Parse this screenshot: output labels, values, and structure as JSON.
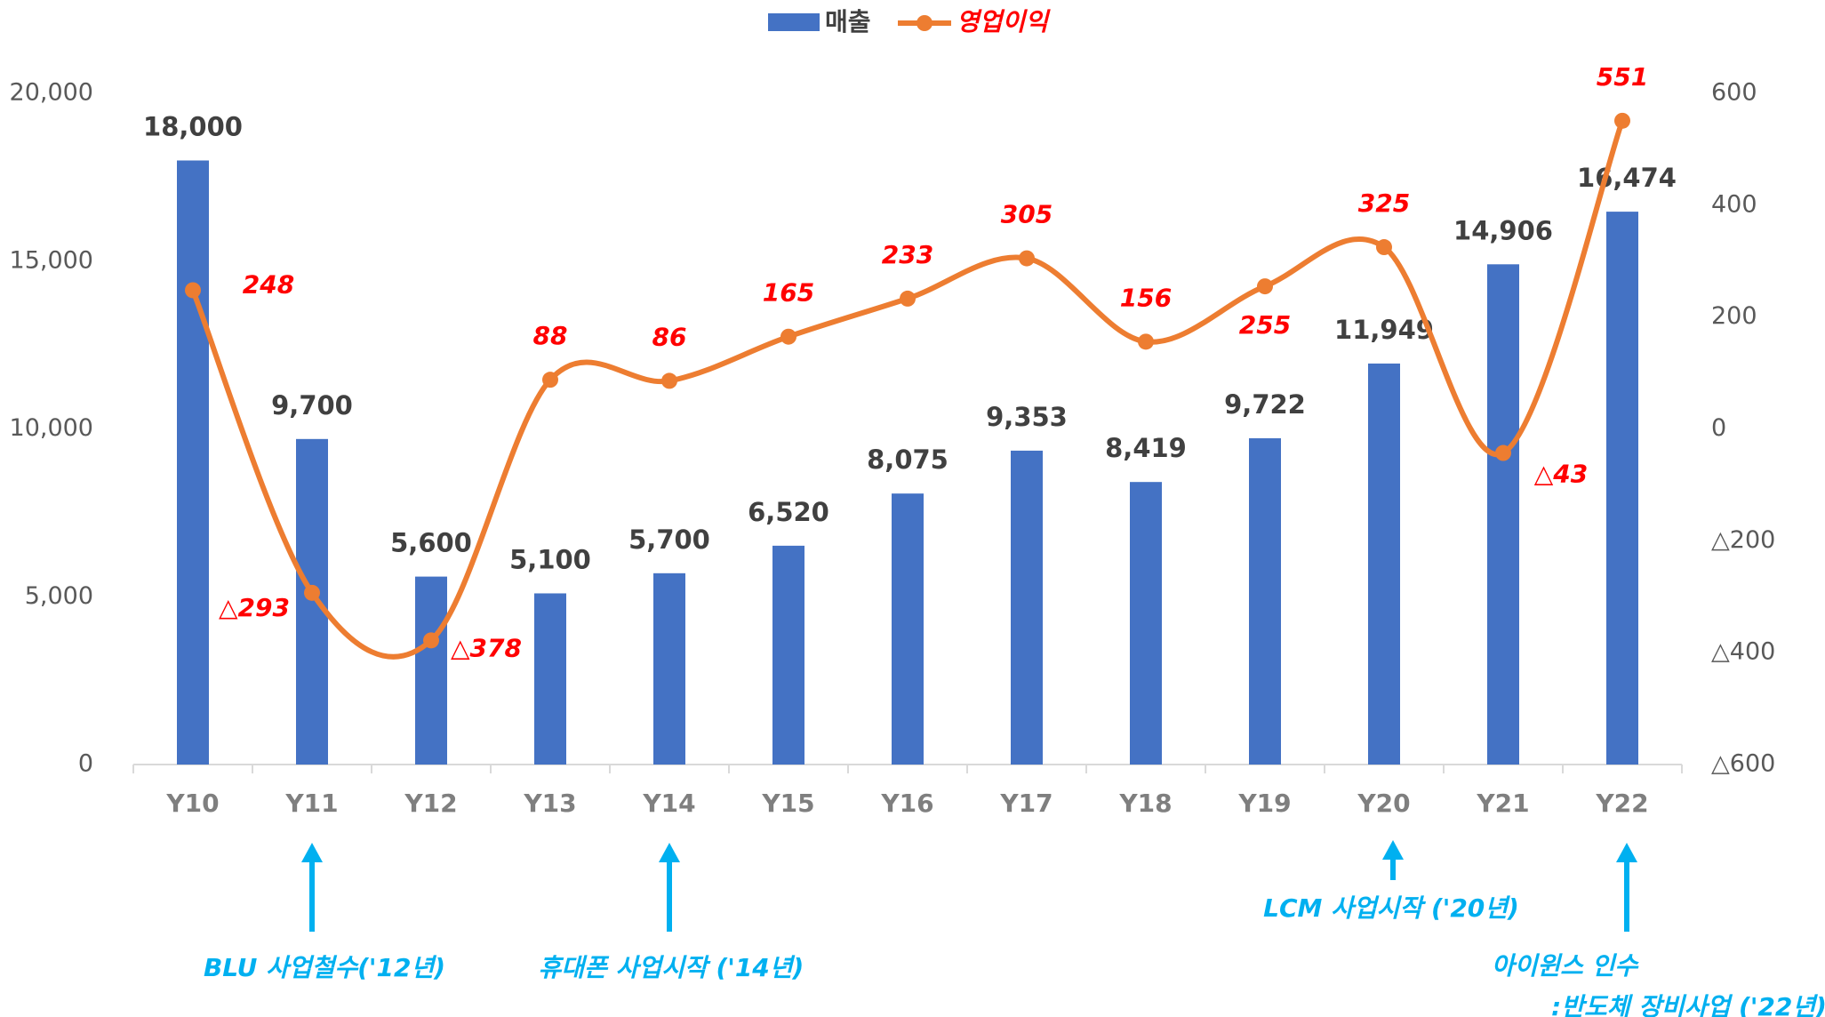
{
  "chart_data": {
    "type": "bar_line",
    "categories": [
      "Y10",
      "Y11",
      "Y12",
      "Y13",
      "Y14",
      "Y15",
      "Y16",
      "Y17",
      "Y18",
      "Y19",
      "Y20",
      "Y21",
      "Y22"
    ],
    "series": [
      {
        "name": "매출",
        "type": "bar",
        "color": "#4472c4",
        "values": [
          18000,
          9700,
          5600,
          5100,
          5700,
          6520,
          8075,
          9353,
          8419,
          9722,
          11949,
          14906,
          16474
        ],
        "value_labels": [
          "18,000",
          "9,700",
          "5,600",
          "5,100",
          "5,700",
          "6,520",
          "8,075",
          "9,353",
          "8,419",
          "9,722",
          "11,949",
          "14,906",
          "16,474"
        ]
      },
      {
        "name": "영업이익",
        "type": "line",
        "axis": "y2",
        "color": "#ed7d31",
        "values": [
          248,
          -293,
          -378,
          88,
          86,
          165,
          233,
          305,
          156,
          255,
          325,
          -43,
          551
        ],
        "value_labels": [
          "248",
          "△293",
          "△378",
          "88",
          "86",
          "165",
          "233",
          "305",
          "156",
          "255",
          "325",
          "△43",
          "551"
        ]
      }
    ],
    "ylim": [
      0,
      20000
    ],
    "yticks": [
      0,
      {
        "value": 5000,
        "label": "5,000"
      },
      {
        "value": 10000,
        "label": "10,000"
      },
      {
        "value": 15000,
        "label": "15,000"
      },
      {
        "value": 20000,
        "label": "20,000"
      }
    ],
    "y2lim": [
      -600,
      600
    ],
    "y2ticks": [
      {
        "value": -600,
        "label": "△600"
      },
      {
        "value": -400,
        "label": "△400"
      },
      {
        "value": -200,
        "label": "△200"
      },
      0,
      200,
      400,
      600
    ],
    "legend": "top",
    "annotations": [
      {
        "lines": [
          "BLU 사업철수('12년)"
        ]
      },
      {
        "lines": [
          "휴대폰 사업시작 ('14년)"
        ]
      },
      {
        "lines": [
          "LCM 사업시작 ('20년)"
        ]
      },
      {
        "lines": [
          "아이윈스 인수",
          ":반도체 장비사업 ('22년)"
        ]
      }
    ]
  }
}
